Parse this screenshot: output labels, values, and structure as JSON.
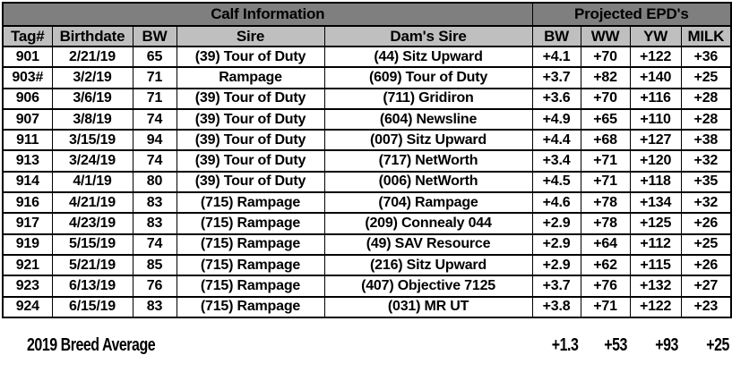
{
  "colors": {
    "group_header_bg": "#7f7f7f",
    "column_header_bg": "#bfbfbf",
    "border": "#000000",
    "row_bg": "#ffffff",
    "text": "#000000"
  },
  "table": {
    "group_headers": [
      {
        "label": "Calf Information",
        "colspan": 5
      },
      {
        "label": "Projected EPD's",
        "colspan": 4
      }
    ],
    "columns": [
      "Tag#",
      "Birthdate",
      "BW",
      "Sire",
      "Dam's Sire",
      "BW",
      "WW",
      "YW",
      "MILK"
    ],
    "rows": [
      [
        "901",
        "2/21/19",
        "65",
        "(39) Tour of Duty",
        "(44) Sitz Upward",
        "+4.1",
        "+70",
        "+122",
        "+36"
      ],
      [
        "903#",
        "3/2/19",
        "71",
        "Rampage",
        "(609) Tour of Duty",
        "+3.7",
        "+82",
        "+140",
        "+25"
      ],
      [
        "906",
        "3/6/19",
        "71",
        "(39) Tour of Duty",
        "(711) Gridiron",
        "+3.6",
        "+70",
        "+116",
        "+28"
      ],
      [
        "907",
        "3/8/19",
        "74",
        "(39) Tour of Duty",
        "(604) Newsline",
        "+4.9",
        "+65",
        "+110",
        "+28"
      ],
      [
        "911",
        "3/15/19",
        "94",
        "(39) Tour of Duty",
        "(007) Sitz Upward",
        "+4.4",
        "+68",
        "+127",
        "+38"
      ],
      [
        "913",
        "3/24/19",
        "74",
        "(39) Tour of Duty",
        "(717) NetWorth",
        "+3.4",
        "+71",
        "+120",
        "+32"
      ],
      [
        "914",
        "4/1/19",
        "80",
        "(39) Tour of Duty",
        "(006) NetWorth",
        "+4.5",
        "+71",
        "+118",
        "+35"
      ],
      [
        "916",
        "4/21/19",
        "83",
        "(715) Rampage",
        "(704) Rampage",
        "+4.6",
        "+78",
        "+134",
        "+32"
      ],
      [
        "917",
        "4/23/19",
        "83",
        "(715) Rampage",
        "(209) Connealy 044",
        "+2.9",
        "+78",
        "+125",
        "+26"
      ],
      [
        "919",
        "5/15/19",
        "74",
        "(715) Rampage",
        "(49) SAV Resource",
        "+2.9",
        "+64",
        "+112",
        "+25"
      ],
      [
        "921",
        "5/21/19",
        "85",
        "(715) Rampage",
        "(216) Sitz Upward",
        "+2.9",
        "+62",
        "+115",
        "+26"
      ],
      [
        "923",
        "6/13/19",
        "76",
        "(715) Rampage",
        "(407) Objective 7125",
        "+3.7",
        "+76",
        "+132",
        "+27"
      ],
      [
        "924",
        "6/15/19",
        "83",
        "(715) Rampage",
        "(031) MR UT",
        "+3.8",
        "+71",
        "+122",
        "+23"
      ]
    ],
    "footer": {
      "label": "2019 Breed Average",
      "values": [
        "+1.3",
        "+53",
        "+93",
        "+25"
      ]
    }
  }
}
